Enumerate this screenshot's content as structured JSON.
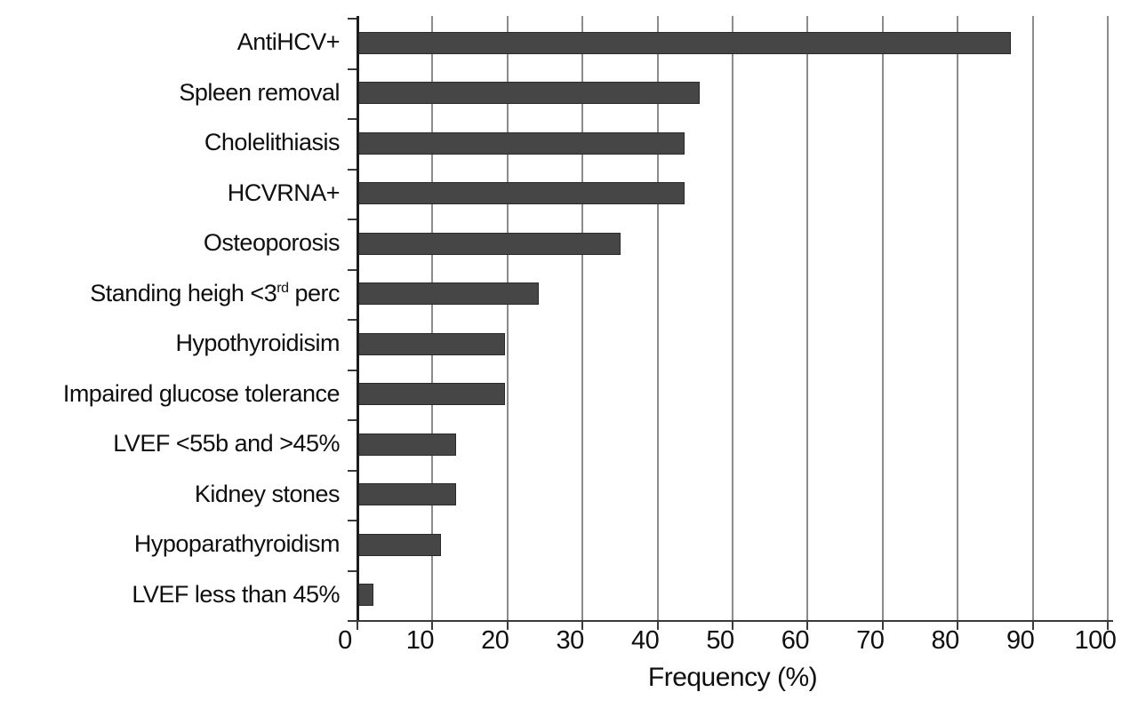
{
  "chart_data": {
    "type": "bar",
    "orientation": "horizontal",
    "title": "",
    "xlabel": "Frequency (%)",
    "ylabel": "",
    "xlim": [
      0,
      100
    ],
    "xticks": [
      0,
      10,
      20,
      30,
      40,
      50,
      60,
      70,
      80,
      90,
      100
    ],
    "grid": true,
    "legend": "none",
    "bar_color": "#464646",
    "gridline_color": "#8c8c8c",
    "categories": [
      "AntiHCV+",
      "Spleen removal",
      "Cholelithiasis",
      "HCVRNA+",
      "Osteoporosis",
      "Standing heigh <3rd perc",
      "Hypothyroidisim",
      "Impaired glucose tolerance",
      "LVEF <55b and >45%",
      "Kidney stones",
      "Hypoparathyroidism",
      "LVEF less than 45%"
    ],
    "values": [
      87,
      45.5,
      43.5,
      43.5,
      35,
      24,
      19.5,
      19.5,
      13,
      13,
      11,
      2
    ],
    "superscript_label": {
      "index": 5,
      "parts": [
        "Standing heigh <3",
        "rd",
        " perc"
      ]
    }
  }
}
